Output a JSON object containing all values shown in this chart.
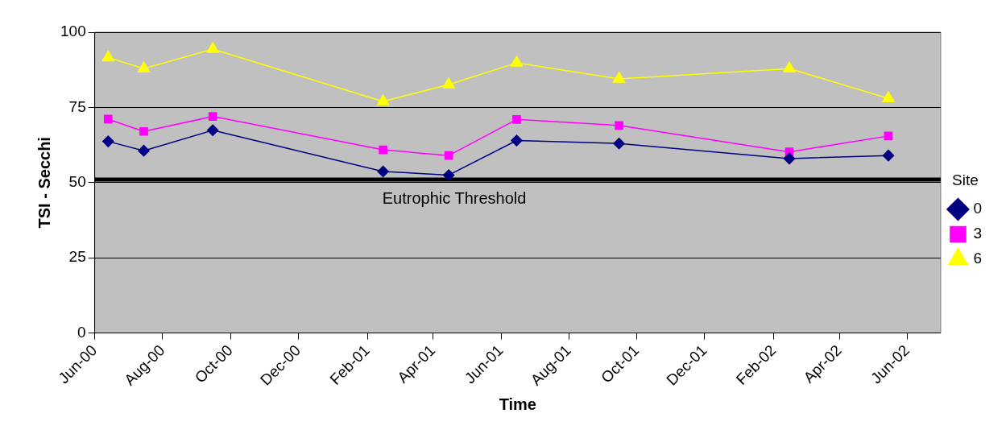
{
  "chart_data": {
    "type": "line",
    "xlabel": "Time",
    "ylabel": "TSI - Secchi",
    "legend_title": "Site",
    "legend": "right",
    "grid": "y",
    "x": [
      "2000-06-13",
      "2000-07-15",
      "2000-09-15",
      "2001-02-15",
      "2001-04-15",
      "2001-06-15",
      "2001-09-15",
      "2002-02-15",
      "2002-05-15"
    ],
    "xlim": [
      "2000-06-01",
      "2002-07-01"
    ],
    "xticks": [
      {
        "value": "2000-06-01",
        "label": "Jun-00"
      },
      {
        "value": "2000-08-01",
        "label": "Aug-00"
      },
      {
        "value": "2000-10-01",
        "label": "Oct-00"
      },
      {
        "value": "2000-12-01",
        "label": "Dec-00"
      },
      {
        "value": "2001-02-01",
        "label": "Feb-01"
      },
      {
        "value": "2001-04-01",
        "label": "Apr-01"
      },
      {
        "value": "2001-06-01",
        "label": "Jun-01"
      },
      {
        "value": "2001-08-01",
        "label": "Aug-01"
      },
      {
        "value": "2001-10-01",
        "label": "Oct-01"
      },
      {
        "value": "2001-12-01",
        "label": "Dec-01"
      },
      {
        "value": "2002-02-01",
        "label": "Feb-02"
      },
      {
        "value": "2002-04-01",
        "label": "Apr-02"
      },
      {
        "value": "2002-06-01",
        "label": "Jun-02"
      }
    ],
    "ylim": [
      0,
      100
    ],
    "yticks": [
      0,
      25,
      50,
      75,
      100
    ],
    "series": [
      {
        "name": "0",
        "color": "#000080",
        "marker": "diamond",
        "values": [
          63.7,
          60.6,
          67.4,
          53.7,
          52.5,
          64,
          63,
          58,
          59
        ]
      },
      {
        "name": "3",
        "color": "#ff00ff",
        "marker": "square",
        "values": [
          71.1,
          67,
          72,
          60.9,
          59,
          71,
          69,
          60.2,
          65.5
        ]
      },
      {
        "name": "6",
        "color": "#ffff00",
        "marker": "triangle",
        "values": [
          91.6,
          87.9,
          94.4,
          77,
          82.6,
          89.8,
          84.5,
          87.9,
          78
        ]
      }
    ],
    "ref_lines": [
      {
        "axis": "y",
        "value": 51,
        "label": "Eutrophic Threshold",
        "color": "#000000"
      }
    ]
  }
}
